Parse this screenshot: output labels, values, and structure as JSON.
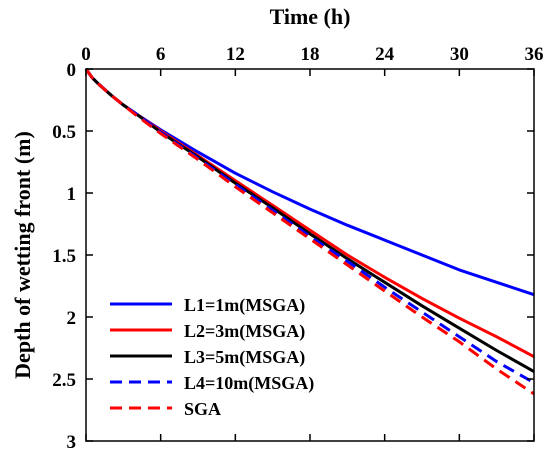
{
  "chart_data": {
    "type": "line",
    "xlabel": "Time (h)",
    "ylabel": "Depth of wetting front (m)",
    "xlim": [
      0,
      36
    ],
    "ylim": [
      0,
      3
    ],
    "y_axis_inverted": true,
    "x_axis_position": "top",
    "xticks": [
      0,
      6,
      12,
      18,
      24,
      30,
      36
    ],
    "yticks": [
      0,
      0.5,
      1,
      1.5,
      2,
      2.5,
      3
    ],
    "ytick_labels": [
      "0",
      "0.5",
      "1",
      "1.5",
      "2",
      "2.5",
      "3"
    ],
    "grid": false,
    "legend_position": "bottom-left",
    "x": [
      0,
      0.5,
      1,
      2,
      3,
      4,
      6,
      9,
      12,
      15,
      18,
      21,
      24,
      27,
      30,
      33,
      36
    ],
    "series": [
      {
        "name": "L1=1m(MSGA)",
        "color": "#0000ff",
        "dash": "solid",
        "values": [
          0,
          0.07,
          0.12,
          0.21,
          0.29,
          0.36,
          0.49,
          0.67,
          0.84,
          0.99,
          1.13,
          1.26,
          1.38,
          1.5,
          1.62,
          1.72,
          1.82
        ]
      },
      {
        "name": "L2=3m(MSGA)",
        "color": "#ff0000",
        "dash": "solid",
        "values": [
          0,
          0.07,
          0.12,
          0.21,
          0.29,
          0.36,
          0.5,
          0.7,
          0.9,
          1.1,
          1.3,
          1.5,
          1.68,
          1.85,
          2.01,
          2.16,
          2.32
        ]
      },
      {
        "name": "L3=5m(MSGA)",
        "color": "#000000",
        "dash": "solid",
        "values": [
          0,
          0.07,
          0.12,
          0.21,
          0.29,
          0.36,
          0.51,
          0.71,
          0.92,
          1.12,
          1.33,
          1.53,
          1.72,
          1.91,
          2.09,
          2.27,
          2.44
        ]
      },
      {
        "name": "L4=10m(MSGA)",
        "color": "#0000ff",
        "dash": "dashed",
        "values": [
          0,
          0.07,
          0.12,
          0.21,
          0.29,
          0.36,
          0.51,
          0.72,
          0.93,
          1.14,
          1.35,
          1.55,
          1.76,
          1.96,
          2.16,
          2.36,
          2.53
        ]
      },
      {
        "name": "SGA",
        "color": "#ff0000",
        "dash": "dashed",
        "values": [
          0,
          0.07,
          0.12,
          0.21,
          0.29,
          0.37,
          0.52,
          0.73,
          0.95,
          1.16,
          1.37,
          1.58,
          1.79,
          2.0,
          2.2,
          2.42,
          2.62
        ]
      }
    ]
  }
}
